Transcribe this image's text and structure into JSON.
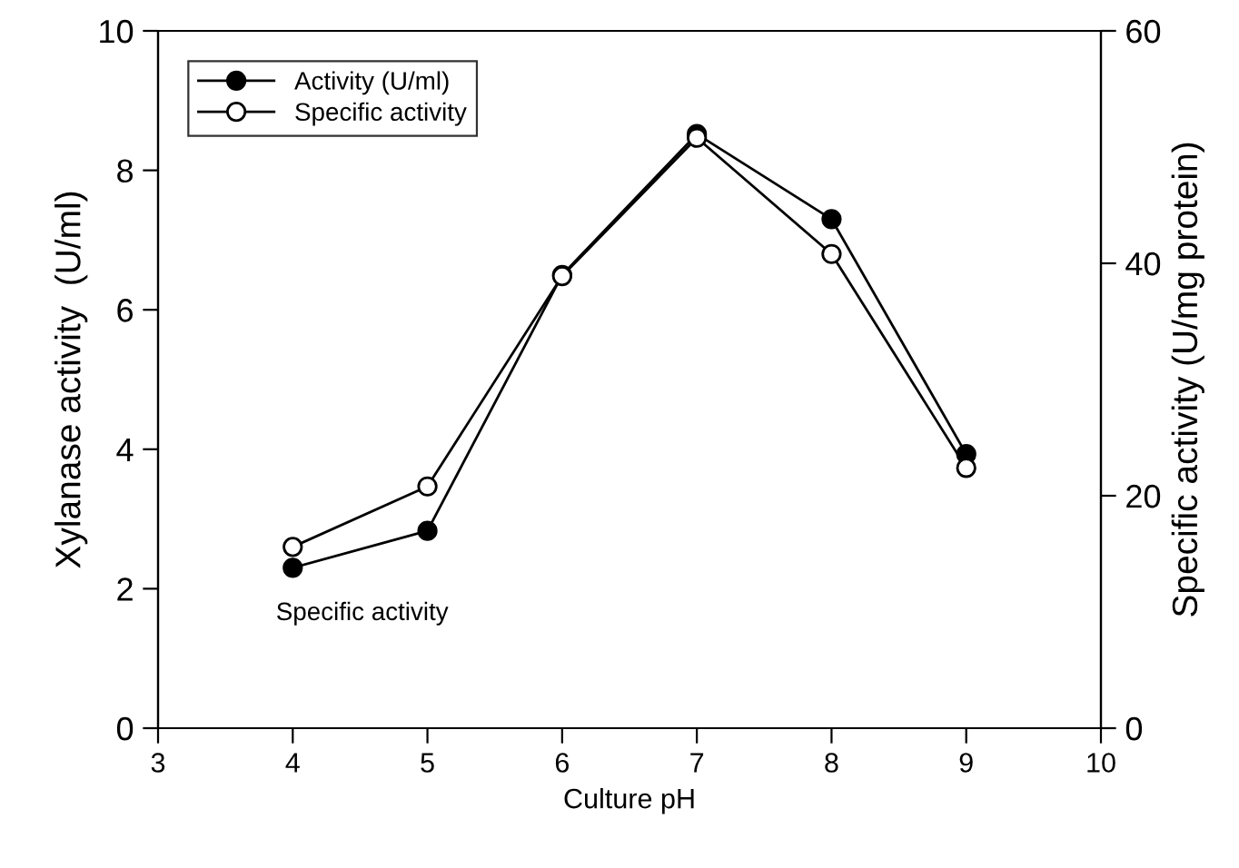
{
  "chart_data": {
    "type": "line",
    "xlabel": "Culture pH",
    "ylabel": "Xylanase activity  (U/ml)",
    "y2label": "Specific activity (U/mg protein)",
    "x": [
      4,
      5,
      6,
      7,
      8,
      9
    ],
    "series": [
      {
        "name": "Activity (U/ml)",
        "color": "#000000",
        "values": [
          2.3,
          2.83,
          6.5,
          8.52,
          7.3,
          3.93
        ],
        "marker": "circle"
      },
      {
        "name": "Specific activity",
        "color": "#000000",
        "values": [
          15.6,
          20.8,
          38.9,
          50.8,
          40.8,
          22.4
        ],
        "axis": "y2",
        "marker": "circle"
      }
    ],
    "xlim": [
      3,
      10
    ],
    "xticks": [
      3,
      4,
      5,
      6,
      7,
      8,
      9,
      10
    ],
    "ylim": [
      0,
      10
    ],
    "yticks": [
      0,
      2,
      4,
      6,
      8,
      10
    ],
    "y2lim": [
      0,
      60
    ],
    "y2ticks": [
      0,
      20,
      40,
      60
    ],
    "annotations": [
      "Specific activity"
    ],
    "legend": "top left",
    "grid": false
  }
}
